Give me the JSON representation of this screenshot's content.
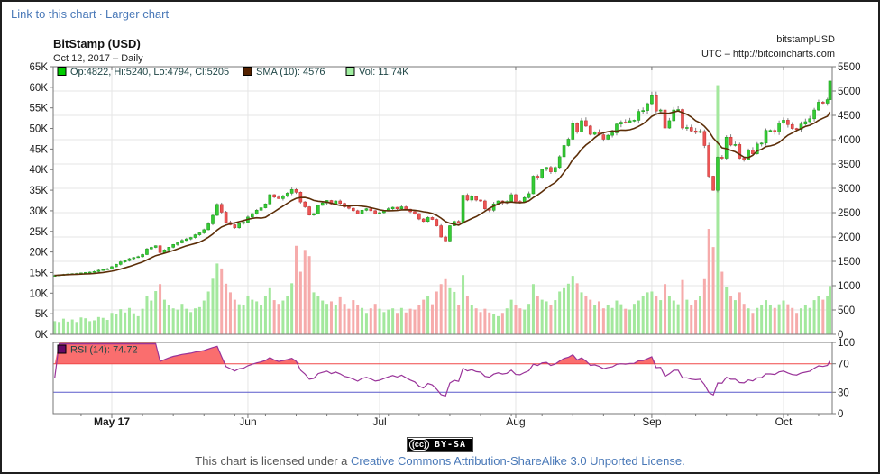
{
  "header": {
    "link_to_chart": "Link to this chart",
    "separator": "·",
    "larger_chart": "Larger chart"
  },
  "chart": {
    "title": "BitStamp (USD)",
    "symbol": "bitstampUSD",
    "subtitle": "Oct 12, 2017 – Daily",
    "utc_note": "UTC – http://bitcoincharts.com",
    "legend": {
      "ohlc": "Op:4822, Hi:5240, Lo:4794, Cl:5205",
      "sma": "SMA (10): 4576",
      "vol": "Vol: 11.74K",
      "rsi": "RSI (14): 74.72"
    }
  },
  "chart_data": {
    "type": "candlestick",
    "title": "BitStamp (USD)",
    "interval": "Daily",
    "last_date": "Oct 12, 2017",
    "x_labels": [
      {
        "text": "May 17",
        "bold": true
      },
      {
        "text": "Jun",
        "bold": false
      },
      {
        "text": "Jul",
        "bold": false
      },
      {
        "text": "Aug",
        "bold": false
      },
      {
        "text": "Sep",
        "bold": false
      },
      {
        "text": "Oct",
        "bold": false
      }
    ],
    "month_start_indices": [
      13,
      44,
      74,
      105,
      136,
      166
    ],
    "left_axis": {
      "title": "volume",
      "ticks": [
        "0K",
        "5K",
        "10K",
        "15K",
        "20K",
        "25K",
        "30K",
        "35K",
        "40K",
        "45K",
        "50K",
        "55K",
        "60K",
        "65K"
      ],
      "range": [
        0,
        65000
      ]
    },
    "right_axis": {
      "title": "price",
      "ticks": [
        "0",
        "500",
        "1000",
        "1500",
        "2000",
        "2500",
        "3000",
        "3500",
        "4000",
        "4500",
        "5000",
        "5500"
      ],
      "range": [
        0,
        5500
      ]
    },
    "rsi_axis": {
      "ticks": [
        "0",
        "30",
        "70",
        "100"
      ],
      "range": [
        0,
        100
      ],
      "overbought": 70,
      "oversold": 30
    },
    "sma_period": 10,
    "rsi_period": 14,
    "last_ohlc": {
      "open": 4822,
      "high": 5240,
      "low": 4794,
      "close": 5205
    },
    "last_sma": 4576,
    "last_volume_k": 11.74,
    "last_rsi": 74.72,
    "closes": [
      1210,
      1222,
      1230,
      1240,
      1245,
      1250,
      1262,
      1270,
      1278,
      1290,
      1316,
      1330,
      1347,
      1390,
      1438,
      1489,
      1515,
      1555,
      1578,
      1596,
      1640,
      1755,
      1787,
      1820,
      1680,
      1735,
      1790,
      1845,
      1880,
      1930,
      1960,
      1990,
      2045,
      2084,
      2150,
      2270,
      2445,
      2670,
      2510,
      2300,
      2250,
      2190,
      2280,
      2303,
      2410,
      2480,
      2550,
      2600,
      2680,
      2870,
      2820,
      2790,
      2840,
      2900,
      2975,
      2920,
      2720,
      2620,
      2450,
      2480,
      2650,
      2700,
      2750,
      2680,
      2740,
      2690,
      2620,
      2590,
      2540,
      2480,
      2550,
      2580,
      2540,
      2480,
      2500,
      2540,
      2580,
      2610,
      2580,
      2620,
      2570,
      2520,
      2480,
      2370,
      2320,
      2400,
      2360,
      2230,
      2000,
      1920,
      2230,
      2320,
      2280,
      2860,
      2760,
      2830,
      2760,
      2740,
      2580,
      2550,
      2680,
      2740,
      2700,
      2730,
      2870,
      2730,
      2720,
      2810,
      2890,
      3250,
      3210,
      3390,
      3430,
      3340,
      3430,
      3650,
      3880,
      4010,
      4330,
      4160,
      4390,
      4280,
      4110,
      4160,
      4100,
      4010,
      4090,
      4140,
      4320,
      4360,
      4350,
      4390,
      4400,
      4580,
      4600,
      4740,
      4920,
      4590,
      4610,
      4240,
      4390,
      4610,
      4620,
      4240,
      4250,
      4180,
      4150,
      4170,
      3880,
      3250,
      2960,
      3640,
      3620,
      4050,
      3890,
      3900,
      3620,
      3590,
      3790,
      3710,
      3910,
      3930,
      4190,
      4190,
      4160,
      4340,
      4400,
      4310,
      4230,
      4210,
      4320,
      4370,
      4430,
      4610,
      4770,
      4750,
      4822,
      5205
    ],
    "volumes_k": [
      3.2,
      3.0,
      3.8,
      3.1,
      3.6,
      3.0,
      4.1,
      3.9,
      3.2,
      3.4,
      4.2,
      4.0,
      3.5,
      5.2,
      5.0,
      6.1,
      5.3,
      6.4,
      5.1,
      4.4,
      6.2,
      9.4,
      8.2,
      10.5,
      12.2,
      8.4,
      7.2,
      6.3,
      6.0,
      7.4,
      6.2,
      5.4,
      6.3,
      6.6,
      8.2,
      10.4,
      13.5,
      17.2,
      16.0,
      12.3,
      10.2,
      8.4,
      7.3,
      7.0,
      9.2,
      8.4,
      8.0,
      7.2,
      9.4,
      11.2,
      8.3,
      7.4,
      8.2,
      9.3,
      12.4,
      21.5,
      15.2,
      20.5,
      19.0,
      10.2,
      9.4,
      8.2,
      7.4,
      8.0,
      7.2,
      9.0,
      7.4,
      6.2,
      8.3,
      7.2,
      6.4,
      5.2,
      6.3,
      7.4,
      6.2,
      5.4,
      6.0,
      6.3,
      5.2,
      6.4,
      5.3,
      6.2,
      6.0,
      7.2,
      8.4,
      9.2,
      7.3,
      10.4,
      12.2,
      13.4,
      11.2,
      10.3,
      7.2,
      14.4,
      9.3,
      7.2,
      6.3,
      5.4,
      6.2,
      5.3,
      5.0,
      4.4,
      5.2,
      6.3,
      8.4,
      7.2,
      6.3,
      6.0,
      7.4,
      12.2,
      9.3,
      8.4,
      8.0,
      7.2,
      8.3,
      10.4,
      11.2,
      12.3,
      14.2,
      12.4,
      10.2,
      9.3,
      8.4,
      7.2,
      8.0,
      6.3,
      7.2,
      6.4,
      8.2,
      7.3,
      6.2,
      6.0,
      7.4,
      8.2,
      9.3,
      10.2,
      10.4,
      9.2,
      8.3,
      12.2,
      9.4,
      8.2,
      7.3,
      13.2,
      8.4,
      7.2,
      8.3,
      9.2,
      13.4,
      25.6,
      21.2,
      60.5,
      15.2,
      11.4,
      9.2,
      8.3,
      10.2,
      7.4,
      6.3,
      5.2,
      6.4,
      7.2,
      8.3,
      7.2,
      6.4,
      7.3,
      8.2,
      7.3,
      6.4,
      5.2,
      6.3,
      7.2,
      6.4,
      8.3,
      9.2,
      8.4,
      9.3,
      11.74
    ],
    "colors": {
      "candle_up_fill": "#35cc35",
      "candle_up_stroke": "#1f9e1f",
      "candle_down_fill": "#ec5555",
      "candle_down_stroke": "#c93535",
      "wick": "#808080",
      "vol_up": "#a3e89d",
      "vol_down": "#f6abab",
      "sma_line": "#5c2e08",
      "rsi_line": "#993399",
      "rsi_fill": "#fa6e6e",
      "overbought_line": "#f04848",
      "oversold_line": "#5a5acc",
      "grid": "#e5e5e5",
      "axis": "#777777",
      "legend_marker_ohlc": "#00cc00",
      "legend_marker_sma": "#552200",
      "legend_marker_vol": "#a0eea0",
      "legend_marker_rsi": "#660966",
      "link_blue": "#4a79b8"
    }
  },
  "footer": {
    "cc_logo": "(cc)",
    "badge_label": "BY-SA",
    "license_prefix": "This chart is licensed under a ",
    "license_link_text": "Creative Commons Attribution-ShareAlike 3.0 Unported License."
  }
}
